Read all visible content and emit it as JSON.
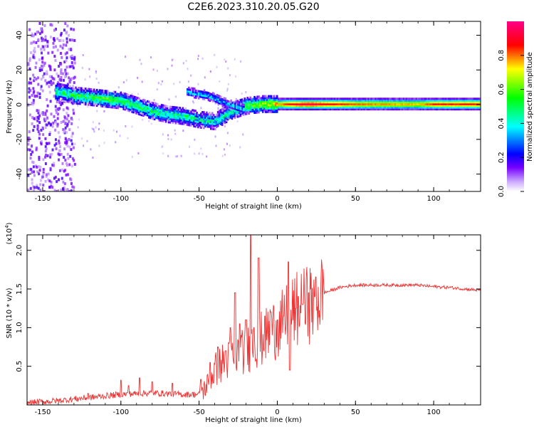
{
  "title": "C2E6.2023.310.20.05.G20",
  "chart_data": [
    {
      "type": "heatmap",
      "name": "spectrogram",
      "xlabel": "Height of straight line (km)",
      "ylabel": "Frequency (Hz)",
      "xlim": [
        -160,
        130
      ],
      "ylim": [
        -50,
        48
      ],
      "xticks": [
        -150,
        -100,
        -50,
        0,
        50,
        100
      ],
      "yticks": [
        -40,
        -20,
        0,
        20,
        40
      ],
      "colorbar": {
        "label": "Normalized spectral amplitude",
        "range": [
          0,
          1
        ],
        "ticks": [
          "0.0",
          "0.2",
          "0.4",
          "0.6",
          "0.8"
        ],
        "colors": [
          "#ffffff",
          "#7700ff",
          "#0000ff",
          "#00ffff",
          "#00ff00",
          "#ffff00",
          "#ff0000",
          "#ff0088"
        ]
      },
      "ridge": {
        "x": [
          -140,
          -130,
          -120,
          -110,
          -100,
          -90,
          -80,
          -70,
          -60,
          -50,
          -40,
          -30,
          -20,
          -10,
          0,
          10,
          20,
          50,
          90,
          100,
          130
        ],
        "freq": [
          8,
          6,
          5,
          4,
          3,
          0,
          -3,
          -5,
          -6,
          -8,
          -9,
          -3,
          0,
          1,
          1,
          1,
          1,
          1,
          1,
          1,
          1
        ],
        "amplitude": [
          0.45,
          0.5,
          0.5,
          0.55,
          0.5,
          0.5,
          0.45,
          0.45,
          0.45,
          0.4,
          0.4,
          0.45,
          0.55,
          0.6,
          0.75,
          0.9,
          0.95,
          0.8,
          0.75,
          0.85,
          0.85
        ]
      }
    },
    {
      "type": "line",
      "name": "snr",
      "xlabel": "Height of straight line (km)",
      "ylabel": "SNR (10 * v/v)",
      "scale_label": "(x10",
      "scale_exp": "4",
      "scale_close": ")",
      "xlim": [
        -160,
        130
      ],
      "ylim": [
        0,
        2.2
      ],
      "xticks": [
        -150,
        -100,
        -50,
        0,
        50,
        100
      ],
      "yticks": [
        0.5,
        1.0,
        1.5,
        2.0
      ],
      "ytick_labels": [
        "0.5",
        "1.0",
        "1.5",
        "2.0"
      ],
      "color": "#ee3333",
      "envelope": {
        "x": [
          -160,
          -140,
          -120,
          -100,
          -80,
          -60,
          -50,
          -45,
          -40,
          -35,
          -30,
          -25,
          -20,
          -15,
          -10,
          -5,
          0,
          5,
          10,
          20,
          30,
          40,
          50,
          60,
          70,
          80,
          90,
          100,
          110,
          120,
          130
        ],
        "y": [
          0.01,
          0.04,
          0.08,
          0.12,
          0.14,
          0.12,
          0.12,
          0.25,
          0.45,
          0.55,
          0.6,
          0.65,
          0.7,
          0.8,
          0.85,
          0.95,
          1.0,
          1.1,
          1.2,
          1.3,
          1.45,
          1.52,
          1.55,
          1.55,
          1.55,
          1.55,
          1.55,
          1.53,
          1.52,
          1.5,
          1.48
        ]
      },
      "spikes": [
        {
          "x": -121,
          "y": 0.15
        },
        {
          "x": -100,
          "y": 0.32
        },
        {
          "x": -95,
          "y": 0.25
        },
        {
          "x": -88,
          "y": 0.35
        },
        {
          "x": -80,
          "y": 0.3
        },
        {
          "x": -67,
          "y": 0.28
        },
        {
          "x": -49,
          "y": 0.33
        },
        {
          "x": -43,
          "y": 0.55
        },
        {
          "x": -38,
          "y": 0.75
        },
        {
          "x": -33,
          "y": 0.7
        },
        {
          "x": -30,
          "y": 1.0
        },
        {
          "x": -27,
          "y": 1.45
        },
        {
          "x": -24,
          "y": 1.05
        },
        {
          "x": -20,
          "y": 1.1
        },
        {
          "x": -17,
          "y": 2.2
        },
        {
          "x": -15,
          "y": 1.0
        },
        {
          "x": -12,
          "y": 1.9
        },
        {
          "x": -8,
          "y": 1.15
        },
        {
          "x": -4,
          "y": 1.2
        },
        {
          "x": 0,
          "y": 1.1
        },
        {
          "x": 4,
          "y": 1.15
        },
        {
          "x": 7,
          "y": 1.85
        },
        {
          "x": 8,
          "y": 0.45
        },
        {
          "x": 12,
          "y": 1.25
        },
        {
          "x": 16,
          "y": 1.3
        },
        {
          "x": 20,
          "y": 1.45
        },
        {
          "x": 24,
          "y": 1.4
        }
      ]
    }
  ]
}
